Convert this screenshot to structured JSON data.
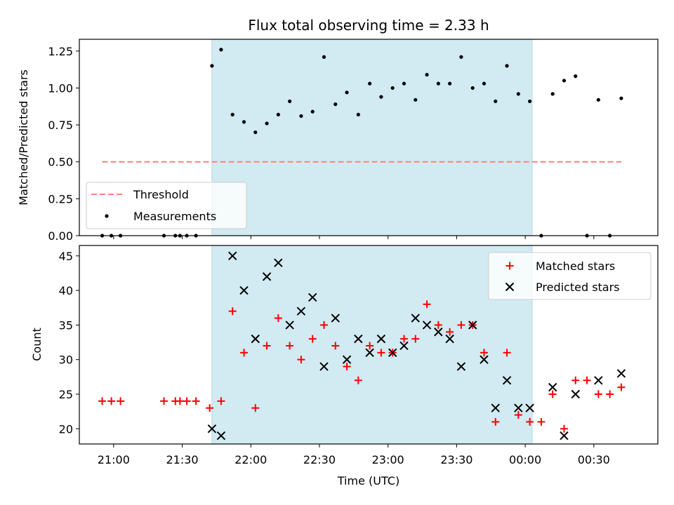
{
  "chart_data": [
    {
      "type": "scatter",
      "title": "Flux total observing time = 2.33 h",
      "ylabel": "Matched/Predicted stars",
      "ylim": [
        0,
        1.33
      ],
      "yticks": [
        "0.00",
        "0.25",
        "0.50",
        "0.75",
        "1.00",
        "1.25"
      ],
      "xlim": [
        "20:45",
        "00:58"
      ],
      "grid": false,
      "legend_position": "bottom-left",
      "shaded_interval": [
        "21:43",
        "00:03"
      ],
      "shade_color": "#add8e6",
      "threshold": {
        "name": "Threshold",
        "value": 0.5,
        "x_range": [
          "20:55",
          "00:42"
        ],
        "color": "#ff7f7f"
      },
      "series": [
        {
          "name": "Measurements",
          "color": "#000000",
          "marker": "dot",
          "points": [
            [
              "20:55",
              0.0
            ],
            [
              "20:59",
              0.0
            ],
            [
              "21:03",
              0.0
            ],
            [
              "21:22",
              0.0
            ],
            [
              "21:27",
              0.0
            ],
            [
              "21:29",
              0.0
            ],
            [
              "21:32",
              0.0
            ],
            [
              "21:36",
              0.0
            ],
            [
              "21:43",
              1.15
            ],
            [
              "21:47",
              1.26
            ],
            [
              "21:52",
              0.82
            ],
            [
              "21:57",
              0.77
            ],
            [
              "22:02",
              0.7
            ],
            [
              "22:07",
              0.76
            ],
            [
              "22:12",
              0.82
            ],
            [
              "22:17",
              0.91
            ],
            [
              "22:22",
              0.81
            ],
            [
              "22:27",
              0.84
            ],
            [
              "22:32",
              1.21
            ],
            [
              "22:37",
              0.89
            ],
            [
              "22:42",
              0.97
            ],
            [
              "22:47",
              0.82
            ],
            [
              "22:52",
              1.03
            ],
            [
              "22:57",
              0.94
            ],
            [
              "23:02",
              1.0
            ],
            [
              "23:07",
              1.03
            ],
            [
              "23:12",
              0.92
            ],
            [
              "23:17",
              1.09
            ],
            [
              "23:22",
              1.03
            ],
            [
              "23:27",
              1.03
            ],
            [
              "23:32",
              1.21
            ],
            [
              "23:37",
              1.0
            ],
            [
              "23:42",
              1.03
            ],
            [
              "23:47",
              0.91
            ],
            [
              "23:52",
              1.15
            ],
            [
              "23:57",
              0.96
            ],
            [
              "00:02",
              0.91
            ],
            [
              "00:07",
              0.0
            ],
            [
              "00:12",
              0.96
            ],
            [
              "00:17",
              1.05
            ],
            [
              "00:22",
              1.08
            ],
            [
              "00:27",
              0.0
            ],
            [
              "00:32",
              0.92
            ],
            [
              "00:37",
              0.0
            ],
            [
              "00:42",
              0.93
            ]
          ]
        }
      ]
    },
    {
      "type": "scatter",
      "xlabel": "Time (UTC)",
      "ylabel": "Count",
      "ylim": [
        17.8,
        46.5
      ],
      "yticks": [
        "20",
        "25",
        "30",
        "35",
        "40",
        "45"
      ],
      "xlim": [
        "20:45",
        "00:58"
      ],
      "xticks": [
        "21:00",
        "21:30",
        "22:00",
        "22:30",
        "23:00",
        "23:30",
        "00:00",
        "00:30"
      ],
      "grid": false,
      "legend_position": "top-right",
      "shaded_interval": [
        "21:43",
        "00:03"
      ],
      "shade_color": "#add8e6",
      "series": [
        {
          "name": "Matched stars",
          "color": "#ff0000",
          "marker": "plus",
          "points": [
            [
              "20:55",
              24
            ],
            [
              "20:59",
              24
            ],
            [
              "21:03",
              24
            ],
            [
              "21:22",
              24
            ],
            [
              "21:27",
              24
            ],
            [
              "21:29",
              24
            ],
            [
              "21:32",
              24
            ],
            [
              "21:36",
              24
            ],
            [
              "21:42",
              23
            ],
            [
              "21:47",
              24
            ],
            [
              "21:52",
              37
            ],
            [
              "21:57",
              31
            ],
            [
              "22:02",
              23
            ],
            [
              "22:07",
              32
            ],
            [
              "22:12",
              36
            ],
            [
              "22:17",
              32
            ],
            [
              "22:22",
              30
            ],
            [
              "22:27",
              33
            ],
            [
              "22:32",
              35
            ],
            [
              "22:37",
              32
            ],
            [
              "22:42",
              29
            ],
            [
              "22:47",
              27
            ],
            [
              "22:52",
              32
            ],
            [
              "22:57",
              31
            ],
            [
              "23:02",
              31
            ],
            [
              "23:07",
              33
            ],
            [
              "23:12",
              33
            ],
            [
              "23:17",
              38
            ],
            [
              "23:22",
              35
            ],
            [
              "23:27",
              34
            ],
            [
              "23:32",
              35
            ],
            [
              "23:37",
              35
            ],
            [
              "23:42",
              31
            ],
            [
              "23:47",
              21
            ],
            [
              "23:52",
              31
            ],
            [
              "23:57",
              22
            ],
            [
              "00:02",
              21
            ],
            [
              "00:07",
              21
            ],
            [
              "00:12",
              25
            ],
            [
              "00:17",
              20
            ],
            [
              "00:22",
              27
            ],
            [
              "00:27",
              27
            ],
            [
              "00:32",
              25
            ],
            [
              "00:37",
              25
            ],
            [
              "00:42",
              26
            ]
          ]
        },
        {
          "name": "Predicted stars",
          "color": "#000000",
          "marker": "x",
          "points": [
            [
              "21:43",
              20
            ],
            [
              "21:47",
              19
            ],
            [
              "21:52",
              45
            ],
            [
              "21:57",
              40
            ],
            [
              "22:02",
              33
            ],
            [
              "22:07",
              42
            ],
            [
              "22:12",
              44
            ],
            [
              "22:17",
              35
            ],
            [
              "22:22",
              37
            ],
            [
              "22:27",
              39
            ],
            [
              "22:32",
              29
            ],
            [
              "22:37",
              36
            ],
            [
              "22:42",
              30
            ],
            [
              "22:47",
              33
            ],
            [
              "22:52",
              31
            ],
            [
              "22:57",
              33
            ],
            [
              "23:02",
              31
            ],
            [
              "23:07",
              32
            ],
            [
              "23:12",
              36
            ],
            [
              "23:17",
              35
            ],
            [
              "23:22",
              34
            ],
            [
              "23:27",
              33
            ],
            [
              "23:32",
              29
            ],
            [
              "23:37",
              35
            ],
            [
              "23:42",
              30
            ],
            [
              "23:47",
              23
            ],
            [
              "23:52",
              27
            ],
            [
              "23:57",
              23
            ],
            [
              "00:02",
              23
            ],
            [
              "00:12",
              26
            ],
            [
              "00:17",
              19
            ],
            [
              "00:22",
              25
            ],
            [
              "00:32",
              27
            ],
            [
              "00:42",
              28
            ]
          ]
        }
      ]
    }
  ]
}
